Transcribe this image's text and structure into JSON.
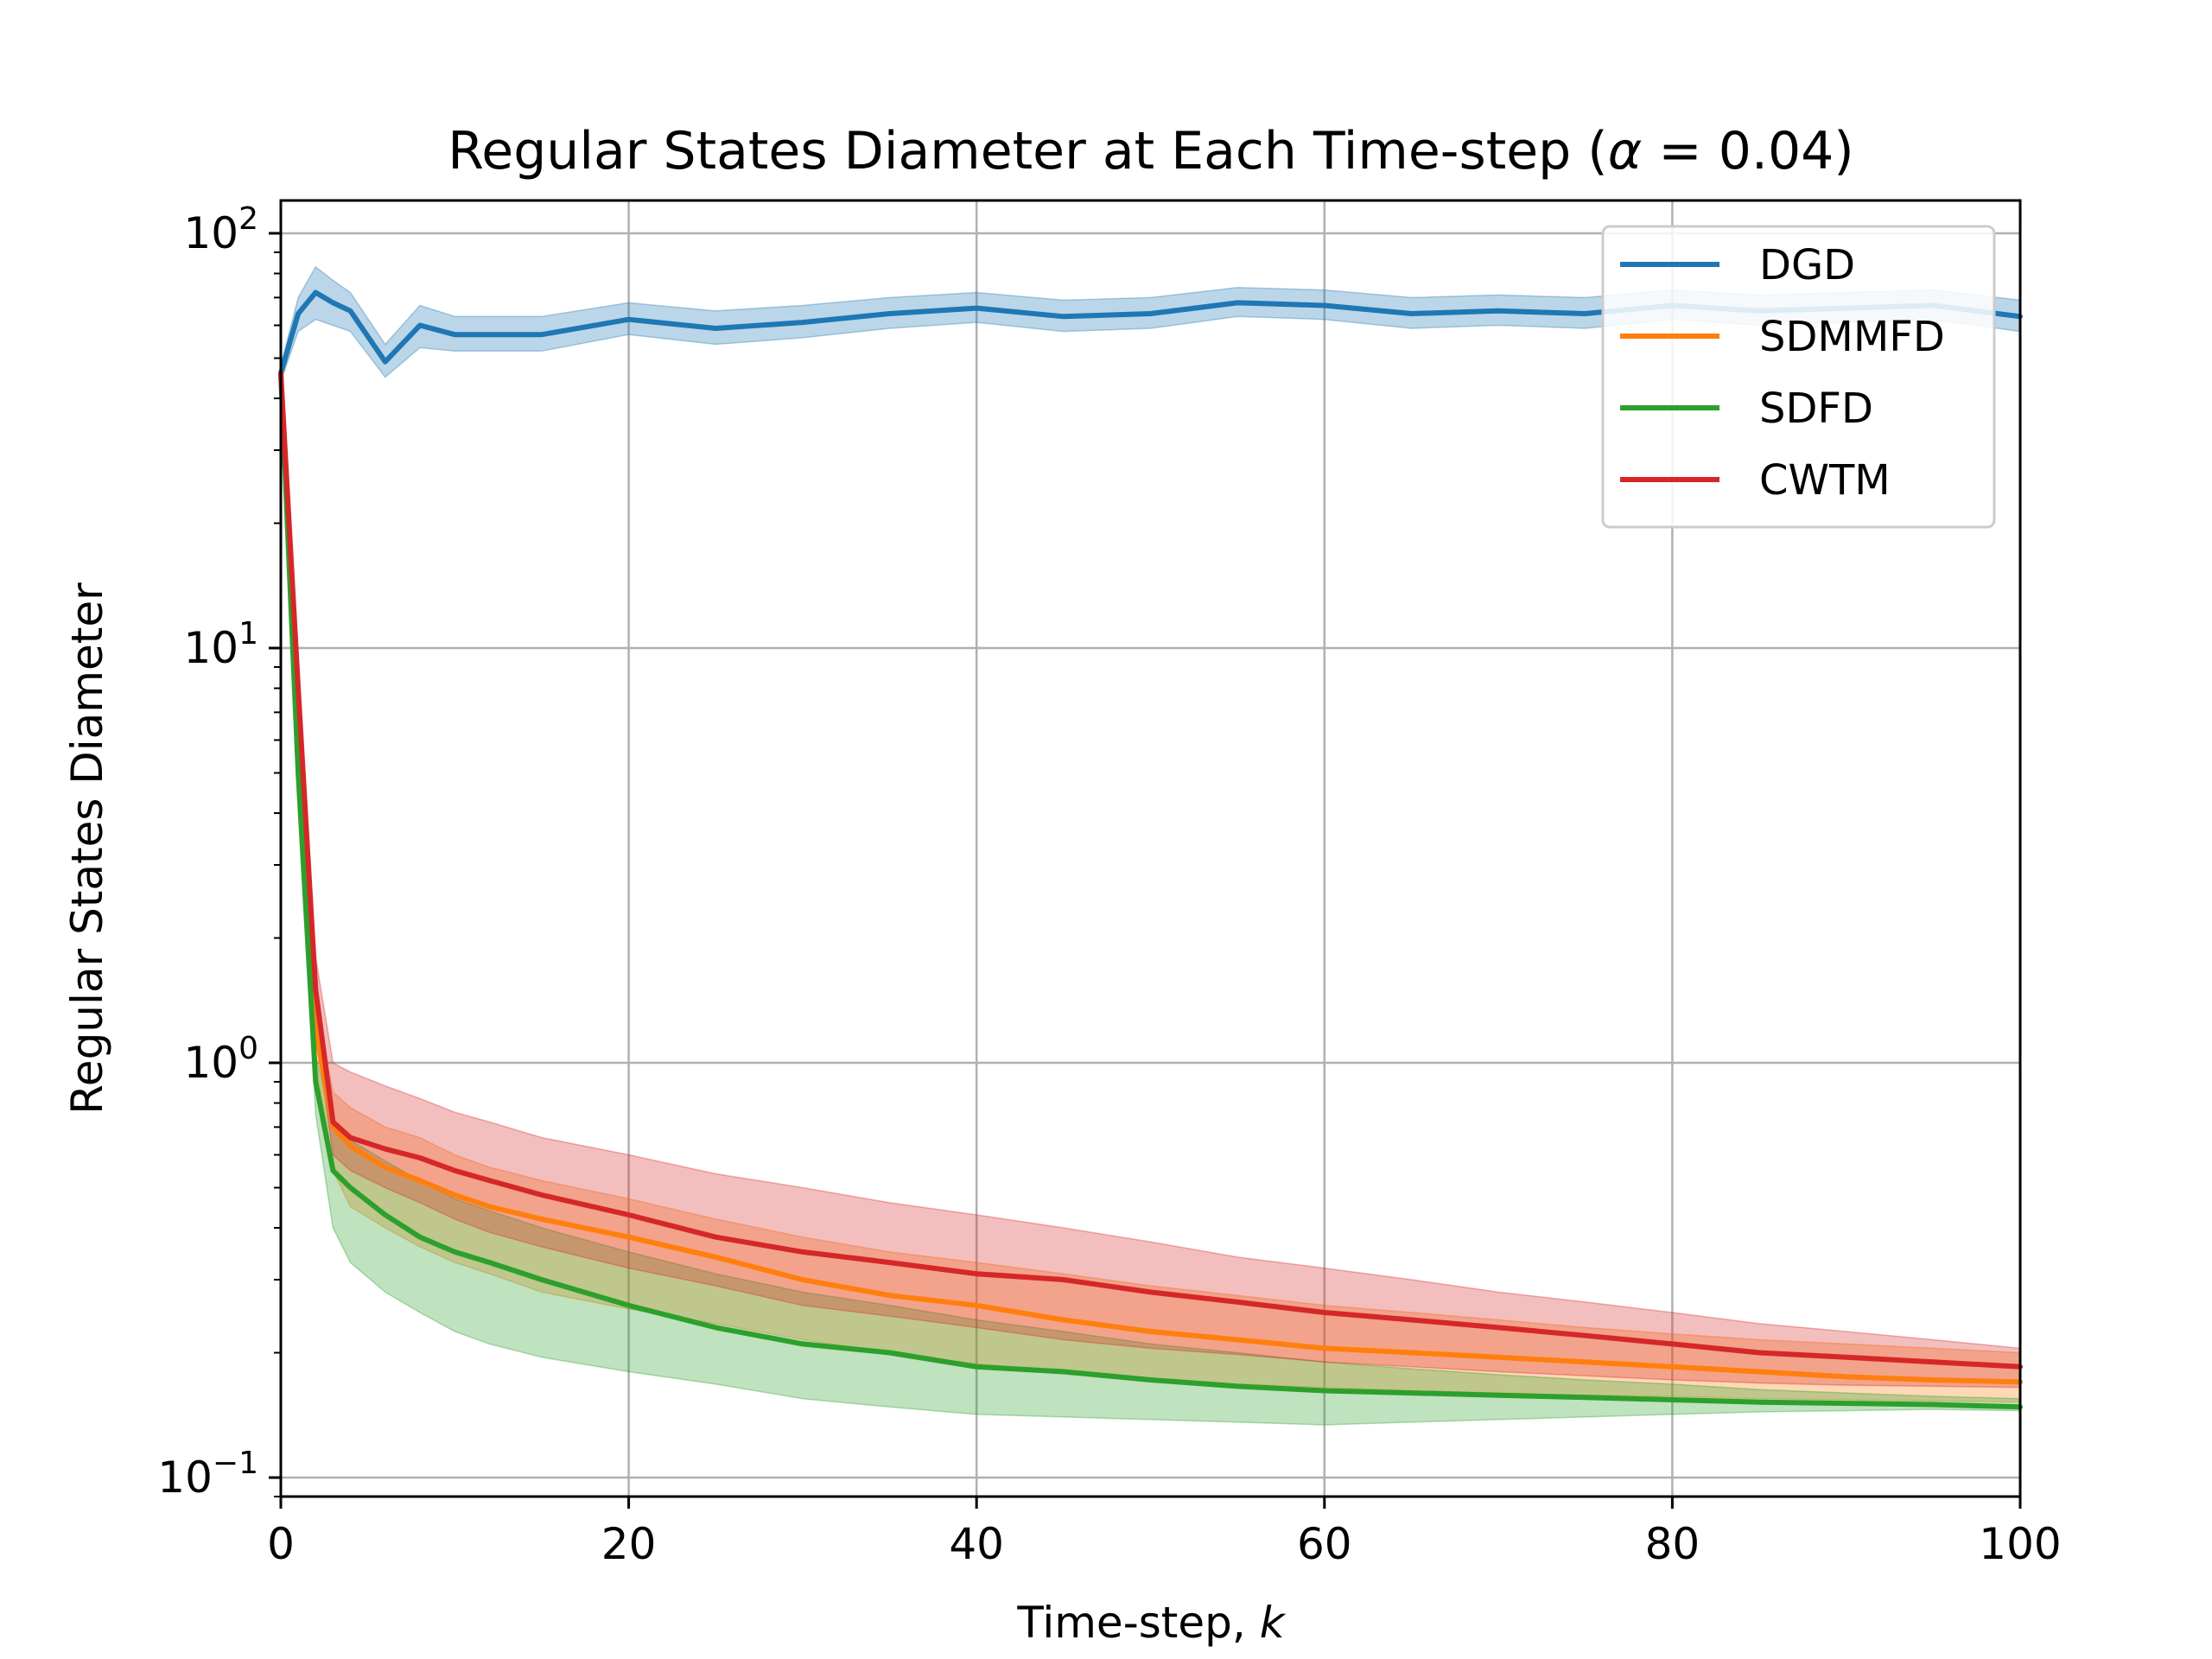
{
  "chart_data": {
    "type": "line",
    "title_parts": [
      "Regular States Diameter at Each Time-step (",
      "α",
      " = 0.04)"
    ],
    "xlabel": "Time-step, ",
    "xlabel_var": "k",
    "ylabel": "Regular States Diameter",
    "xlim": [
      0,
      100
    ],
    "ylim": [
      0.09,
      120
    ],
    "yscale": "log",
    "grid": true,
    "legend_position": "upper right",
    "x_ticks": [
      0,
      20,
      40,
      60,
      80,
      100
    ],
    "x_tick_labels": [
      "0",
      "20",
      "40",
      "60",
      "80",
      "100"
    ],
    "y_ticks": [
      {
        "value": 100,
        "base": "10",
        "exp": "2"
      },
      {
        "value": 10,
        "base": "10",
        "exp": "1"
      },
      {
        "value": 1,
        "base": "10",
        "exp": "0"
      },
      {
        "value": 0.1,
        "base": "10",
        "exp": "−1"
      }
    ],
    "x": [
      0,
      1,
      2,
      3,
      4,
      6,
      8,
      10,
      12,
      15,
      20,
      25,
      30,
      35,
      40,
      45,
      50,
      55,
      60,
      65,
      70,
      75,
      80,
      85,
      90,
      95,
      100
    ],
    "series": [
      {
        "name": "DGD",
        "color": "#1f77b4",
        "values": [
          46,
          64,
          72,
          68,
          65,
          49,
          60,
          57,
          57,
          57,
          62,
          59,
          61,
          64,
          66,
          63,
          64,
          68,
          67,
          64,
          65,
          64,
          67,
          65,
          66,
          67,
          63
        ],
        "lower": [
          44,
          58,
          62,
          60,
          58,
          45,
          53,
          52,
          52,
          52,
          57,
          54,
          56,
          59,
          61,
          58,
          59,
          63,
          62,
          59,
          60,
          59,
          62,
          60,
          61,
          62,
          58
        ],
        "upper": [
          48,
          70,
          83,
          77,
          72,
          54,
          67,
          63,
          63,
          63,
          68,
          65,
          67,
          70,
          72,
          69,
          70,
          74,
          73,
          70,
          71,
          70,
          73,
          71,
          72,
          73,
          69
        ]
      },
      {
        "name": "SDMMFD",
        "color": "#ff7f0e",
        "values": [
          46,
          6,
          1.2,
          0.7,
          0.63,
          0.56,
          0.52,
          0.48,
          0.45,
          0.42,
          0.38,
          0.34,
          0.3,
          0.275,
          0.26,
          0.24,
          0.225,
          0.215,
          0.205,
          0.2,
          0.195,
          0.19,
          0.185,
          0.18,
          0.175,
          0.172,
          0.17
        ],
        "lower": [
          46,
          6,
          1.0,
          0.55,
          0.45,
          0.4,
          0.36,
          0.33,
          0.31,
          0.28,
          0.255,
          0.235,
          0.215,
          0.2,
          0.188,
          0.18,
          0.174,
          0.168,
          0.165,
          0.162,
          0.16,
          0.158,
          0.157,
          0.155,
          0.154,
          0.153,
          0.152
        ],
        "upper": [
          46,
          6.3,
          1.4,
          0.85,
          0.78,
          0.7,
          0.66,
          0.6,
          0.56,
          0.52,
          0.47,
          0.42,
          0.38,
          0.35,
          0.33,
          0.31,
          0.29,
          0.275,
          0.26,
          0.25,
          0.24,
          0.23,
          0.222,
          0.215,
          0.21,
          0.205,
          0.2
        ]
      },
      {
        "name": "SDFD",
        "color": "#2ca02c",
        "values": [
          46,
          5,
          0.9,
          0.55,
          0.5,
          0.43,
          0.38,
          0.35,
          0.33,
          0.3,
          0.26,
          0.23,
          0.21,
          0.2,
          0.185,
          0.18,
          0.172,
          0.166,
          0.162,
          0.16,
          0.158,
          0.156,
          0.154,
          0.152,
          0.151,
          0.15,
          0.148
        ],
        "lower": [
          46,
          4.5,
          0.75,
          0.4,
          0.33,
          0.28,
          0.25,
          0.225,
          0.21,
          0.195,
          0.18,
          0.168,
          0.155,
          0.148,
          0.142,
          0.14,
          0.138,
          0.136,
          0.134,
          0.136,
          0.138,
          0.14,
          0.142,
          0.144,
          0.145,
          0.146,
          0.145
        ],
        "upper": [
          46,
          5.5,
          1.05,
          0.7,
          0.65,
          0.58,
          0.52,
          0.47,
          0.44,
          0.4,
          0.35,
          0.31,
          0.28,
          0.26,
          0.24,
          0.225,
          0.21,
          0.2,
          0.19,
          0.183,
          0.177,
          0.172,
          0.168,
          0.163,
          0.16,
          0.157,
          0.155
        ]
      },
      {
        "name": "CWTM",
        "color": "#d62728",
        "values": [
          46,
          8,
          1.5,
          0.72,
          0.66,
          0.62,
          0.59,
          0.55,
          0.52,
          0.48,
          0.43,
          0.38,
          0.35,
          0.33,
          0.31,
          0.3,
          0.28,
          0.265,
          0.25,
          0.24,
          0.23,
          0.22,
          0.21,
          0.2,
          0.195,
          0.19,
          0.185
        ],
        "lower": [
          46,
          7.5,
          1.2,
          0.6,
          0.55,
          0.5,
          0.46,
          0.42,
          0.39,
          0.36,
          0.32,
          0.29,
          0.26,
          0.245,
          0.23,
          0.215,
          0.205,
          0.198,
          0.19,
          0.185,
          0.18,
          0.176,
          0.172,
          0.169,
          0.167,
          0.166,
          0.165
        ],
        "upper": [
          46,
          8.5,
          1.8,
          1.0,
          0.95,
          0.88,
          0.82,
          0.76,
          0.72,
          0.66,
          0.6,
          0.54,
          0.5,
          0.46,
          0.43,
          0.4,
          0.37,
          0.34,
          0.32,
          0.3,
          0.28,
          0.265,
          0.25,
          0.235,
          0.225,
          0.215,
          0.205
        ]
      }
    ]
  }
}
